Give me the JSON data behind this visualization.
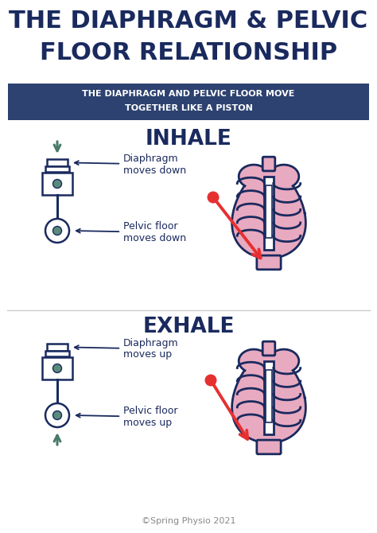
{
  "bg_color": "#ffffff",
  "title_color": "#1a2a5e",
  "banner_bg": "#2d4270",
  "banner_text_color": "#ffffff",
  "title_line1": "THE DIAPHRAGM & PELVIC",
  "title_line2": "FLOOR RELATIONSHIP",
  "banner_line1": "THE DIAPHRAGM AND PELVIC FLOOR MOVE",
  "banner_line2": "TOGETHER LIKE A PISTON",
  "inhale_label": "INHALE",
  "exhale_label": "EXHALE",
  "label_color": "#1a2a5e",
  "piston_outline": "#1a2a5e",
  "piston_fill": "#ffffff",
  "piston_dot": "#5a8a7a",
  "arrow_color": "#4a7a6a",
  "red_arrow_color": "#e63030",
  "rib_fill": "#e8aac0",
  "rib_outline": "#1a2a5e",
  "annotation_color": "#1a2a5e",
  "copyright": "©Spring Physio 2021",
  "copyright_color": "#888888",
  "divider_color": "#cccccc"
}
